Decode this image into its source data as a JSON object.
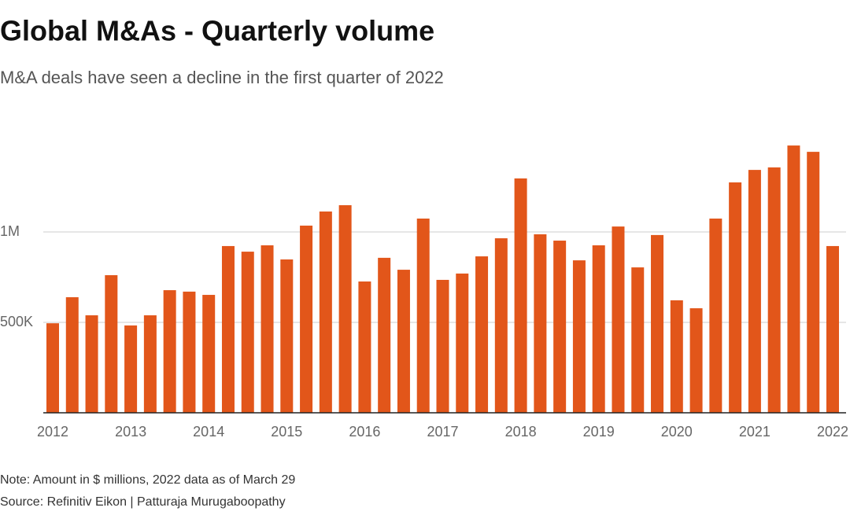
{
  "chart_data": {
    "type": "bar",
    "title": "Global M&As - Quarterly volume",
    "subtitle": "M&A deals have seen a decline in the first quarter of 2022",
    "note": "Note: Amount in $ millions, 2022 data as of March 29",
    "source": "Source: Refinitiv Eikon | Patturaja Murugaboopathy",
    "categories": [
      "2012",
      null,
      null,
      null,
      "2013",
      null,
      null,
      null,
      "2014",
      null,
      null,
      null,
      "2015",
      null,
      null,
      null,
      "2016",
      null,
      null,
      null,
      "2017",
      null,
      null,
      null,
      "2018",
      null,
      null,
      null,
      "2019",
      null,
      null,
      null,
      "2020",
      null,
      null,
      null,
      "2021",
      null,
      null,
      null,
      "2022"
    ],
    "values": [
      495000,
      639000,
      539000,
      761000,
      483000,
      539000,
      678000,
      670000,
      652000,
      922000,
      891000,
      926000,
      848000,
      1035000,
      1113000,
      1148000,
      726000,
      857000,
      791000,
      1074000,
      735000,
      770000,
      865000,
      965000,
      1296000,
      987000,
      952000,
      843000,
      926000,
      1030000,
      804000,
      983000,
      622000,
      578000,
      1074000,
      1274000,
      1343000,
      1357000,
      1478000,
      1443000,
      922000
    ],
    "color": "#e2561a",
    "ylim": [
      0,
      1600000
    ],
    "yticks": [
      {
        "value": 500000,
        "label": "500K"
      },
      {
        "value": 1000000,
        "label": "1M"
      }
    ],
    "grid": true
  }
}
